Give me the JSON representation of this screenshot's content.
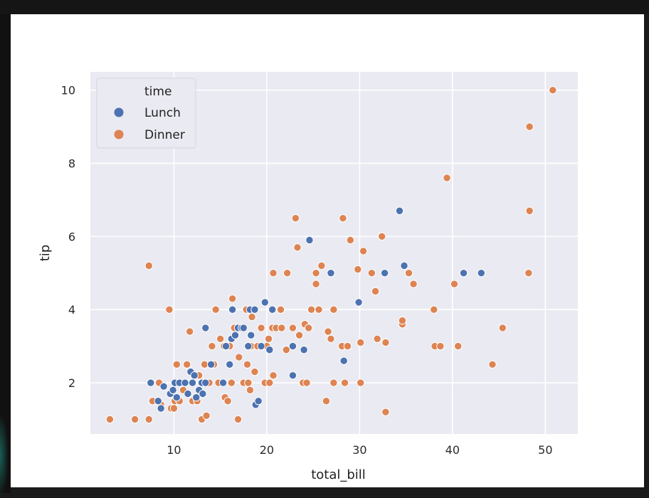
{
  "chart_data": {
    "type": "scatter",
    "title": "",
    "xlabel": "total_bill",
    "ylabel": "tip",
    "xlim": [
      1.0,
      53.5
    ],
    "ylim": [
      0.6,
      10.5
    ],
    "x_ticks": [
      10,
      20,
      30,
      40,
      50
    ],
    "y_ticks": [
      2,
      4,
      6,
      8,
      10
    ],
    "grid": true,
    "background_color": "#eaeaf2",
    "legend": {
      "title": "time",
      "placement": "upper-left"
    },
    "series": [
      {
        "name": "Lunch",
        "color": "#4c72b0",
        "points": [
          [
            7.5,
            2.0
          ],
          [
            8.3,
            1.5
          ],
          [
            8.6,
            1.3
          ],
          [
            8.9,
            1.9
          ],
          [
            9.6,
            1.7
          ],
          [
            9.9,
            1.8
          ],
          [
            10.1,
            2.0
          ],
          [
            10.3,
            1.6
          ],
          [
            10.6,
            2.0
          ],
          [
            11.2,
            2.0
          ],
          [
            11.5,
            1.7
          ],
          [
            11.8,
            2.3
          ],
          [
            12.0,
            2.0
          ],
          [
            12.2,
            2.2
          ],
          [
            12.4,
            1.6
          ],
          [
            12.7,
            1.8
          ],
          [
            13.0,
            2.0
          ],
          [
            13.1,
            1.7
          ],
          [
            13.4,
            2.0
          ],
          [
            13.4,
            3.5
          ],
          [
            14.0,
            2.5
          ],
          [
            15.3,
            2.0
          ],
          [
            15.6,
            3.0
          ],
          [
            16.0,
            2.5
          ],
          [
            16.2,
            3.2
          ],
          [
            16.3,
            4.0
          ],
          [
            16.6,
            3.3
          ],
          [
            16.9,
            3.5
          ],
          [
            17.3,
            3.5
          ],
          [
            17.5,
            3.5
          ],
          [
            18.0,
            3.0
          ],
          [
            18.2,
            4.0
          ],
          [
            18.3,
            3.3
          ],
          [
            18.7,
            4.0
          ],
          [
            18.8,
            1.4
          ],
          [
            19.1,
            1.5
          ],
          [
            19.4,
            3.0
          ],
          [
            19.8,
            4.2
          ],
          [
            20.3,
            2.9
          ],
          [
            20.6,
            4.0
          ],
          [
            22.8,
            3.0
          ],
          [
            22.8,
            2.2
          ],
          [
            24.0,
            2.9
          ],
          [
            24.6,
            5.9
          ],
          [
            26.9,
            5.0
          ],
          [
            28.3,
            2.6
          ],
          [
            29.9,
            4.2
          ],
          [
            32.7,
            5.0
          ],
          [
            34.3,
            6.7
          ],
          [
            34.8,
            5.2
          ],
          [
            41.2,
            5.0
          ],
          [
            43.1,
            5.0
          ]
        ]
      },
      {
        "name": "Dinner",
        "color": "#dd8452",
        "points": [
          [
            3.1,
            1.0
          ],
          [
            5.8,
            1.0
          ],
          [
            7.3,
            1.0
          ],
          [
            7.3,
            5.2
          ],
          [
            7.7,
            1.5
          ],
          [
            8.4,
            2.0
          ],
          [
            8.6,
            1.4
          ],
          [
            9.5,
            4.0
          ],
          [
            9.7,
            1.3
          ],
          [
            10.0,
            1.3
          ],
          [
            10.1,
            1.5
          ],
          [
            10.3,
            2.5
          ],
          [
            10.6,
            1.5
          ],
          [
            11.0,
            1.8
          ],
          [
            11.4,
            2.5
          ],
          [
            11.7,
            3.4
          ],
          [
            12.0,
            1.5
          ],
          [
            12.5,
            1.5
          ],
          [
            12.7,
            2.2
          ],
          [
            13.0,
            1.0
          ],
          [
            13.3,
            2.5
          ],
          [
            13.5,
            1.1
          ],
          [
            13.8,
            2.0
          ],
          [
            14.1,
            3.0
          ],
          [
            14.3,
            2.5
          ],
          [
            14.5,
            4.0
          ],
          [
            14.8,
            2.0
          ],
          [
            15.0,
            3.2
          ],
          [
            15.4,
            3.0
          ],
          [
            15.5,
            1.6
          ],
          [
            15.8,
            1.5
          ],
          [
            16.0,
            3.0
          ],
          [
            16.2,
            2.0
          ],
          [
            16.3,
            4.3
          ],
          [
            16.5,
            3.5
          ],
          [
            16.9,
            1.0
          ],
          [
            17.0,
            2.7
          ],
          [
            17.3,
            3.5
          ],
          [
            17.5,
            2.0
          ],
          [
            17.8,
            4.0
          ],
          [
            17.9,
            2.5
          ],
          [
            18.0,
            2.0
          ],
          [
            18.2,
            1.8
          ],
          [
            18.3,
            3.0
          ],
          [
            18.4,
            3.8
          ],
          [
            18.7,
            2.3
          ],
          [
            19.0,
            3.0
          ],
          [
            19.4,
            3.5
          ],
          [
            19.8,
            2.0
          ],
          [
            20.0,
            3.0
          ],
          [
            20.2,
            3.2
          ],
          [
            20.3,
            2.0
          ],
          [
            20.6,
            3.5
          ],
          [
            20.7,
            5.0
          ],
          [
            20.7,
            2.2
          ],
          [
            21.0,
            3.5
          ],
          [
            21.5,
            4.0
          ],
          [
            21.6,
            3.5
          ],
          [
            22.1,
            2.9
          ],
          [
            22.2,
            5.0
          ],
          [
            22.8,
            3.5
          ],
          [
            23.1,
            6.5
          ],
          [
            23.3,
            5.7
          ],
          [
            23.5,
            3.3
          ],
          [
            23.9,
            2.0
          ],
          [
            24.1,
            3.6
          ],
          [
            24.3,
            2.0
          ],
          [
            24.5,
            3.5
          ],
          [
            24.8,
            4.0
          ],
          [
            25.3,
            4.7
          ],
          [
            25.3,
            5.0
          ],
          [
            25.6,
            4.0
          ],
          [
            25.9,
            5.2
          ],
          [
            26.4,
            1.5
          ],
          [
            26.6,
            3.4
          ],
          [
            26.9,
            3.2
          ],
          [
            27.2,
            4.0
          ],
          [
            27.2,
            2.0
          ],
          [
            28.1,
            3.0
          ],
          [
            28.2,
            6.5
          ],
          [
            28.4,
            2.0
          ],
          [
            28.7,
            3.0
          ],
          [
            29.0,
            5.9
          ],
          [
            29.8,
            5.1
          ],
          [
            30.1,
            3.1
          ],
          [
            30.1,
            2.0
          ],
          [
            30.4,
            5.6
          ],
          [
            31.3,
            5.0
          ],
          [
            31.7,
            4.5
          ],
          [
            31.9,
            3.2
          ],
          [
            32.4,
            6.0
          ],
          [
            32.8,
            1.2
          ],
          [
            32.8,
            3.1
          ],
          [
            34.6,
            3.6
          ],
          [
            34.6,
            3.7
          ],
          [
            35.3,
            5.0
          ],
          [
            35.8,
            4.7
          ],
          [
            38.0,
            4.0
          ],
          [
            38.1,
            3.0
          ],
          [
            38.7,
            3.0
          ],
          [
            39.4,
            7.6
          ],
          [
            40.2,
            4.7
          ],
          [
            40.6,
            3.0
          ],
          [
            44.3,
            2.5
          ],
          [
            45.4,
            3.5
          ],
          [
            48.2,
            5.0
          ],
          [
            48.3,
            6.7
          ],
          [
            48.3,
            9.0
          ],
          [
            50.8,
            10.0
          ]
        ]
      }
    ]
  }
}
